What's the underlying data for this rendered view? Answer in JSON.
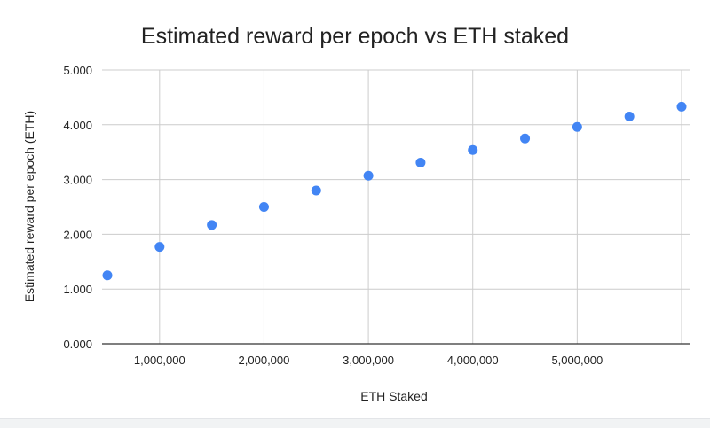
{
  "chart_data": {
    "type": "scatter",
    "title": "Estimated reward per epoch vs ETH staked",
    "xlabel": "ETH Staked",
    "ylabel": "Estimated reward per epoch (ETH)",
    "xlim": [
      500000,
      6000000
    ],
    "ylim": [
      0,
      5
    ],
    "x_ticks": [
      1000000,
      2000000,
      3000000,
      4000000,
      5000000
    ],
    "x_tick_labels": [
      "1,000,000",
      "2,000,000",
      "3,000,000",
      "4,000,000",
      "5,000,000"
    ],
    "y_ticks": [
      0,
      1,
      2,
      3,
      4,
      5
    ],
    "y_tick_labels": [
      "0.000",
      "1.000",
      "2.000",
      "3.000",
      "4.000",
      "5.000"
    ],
    "grid": true,
    "legend": "none",
    "marker_color": "#4285f4",
    "series": [
      {
        "x": [
          500000,
          1000000,
          1500000,
          2000000,
          2500000,
          3000000,
          3500000,
          4000000,
          4500000,
          5000000,
          5500000,
          6000000
        ],
        "y": [
          1.25,
          1.77,
          2.17,
          2.5,
          2.8,
          3.07,
          3.31,
          3.54,
          3.75,
          3.96,
          4.15,
          4.33
        ]
      }
    ]
  }
}
